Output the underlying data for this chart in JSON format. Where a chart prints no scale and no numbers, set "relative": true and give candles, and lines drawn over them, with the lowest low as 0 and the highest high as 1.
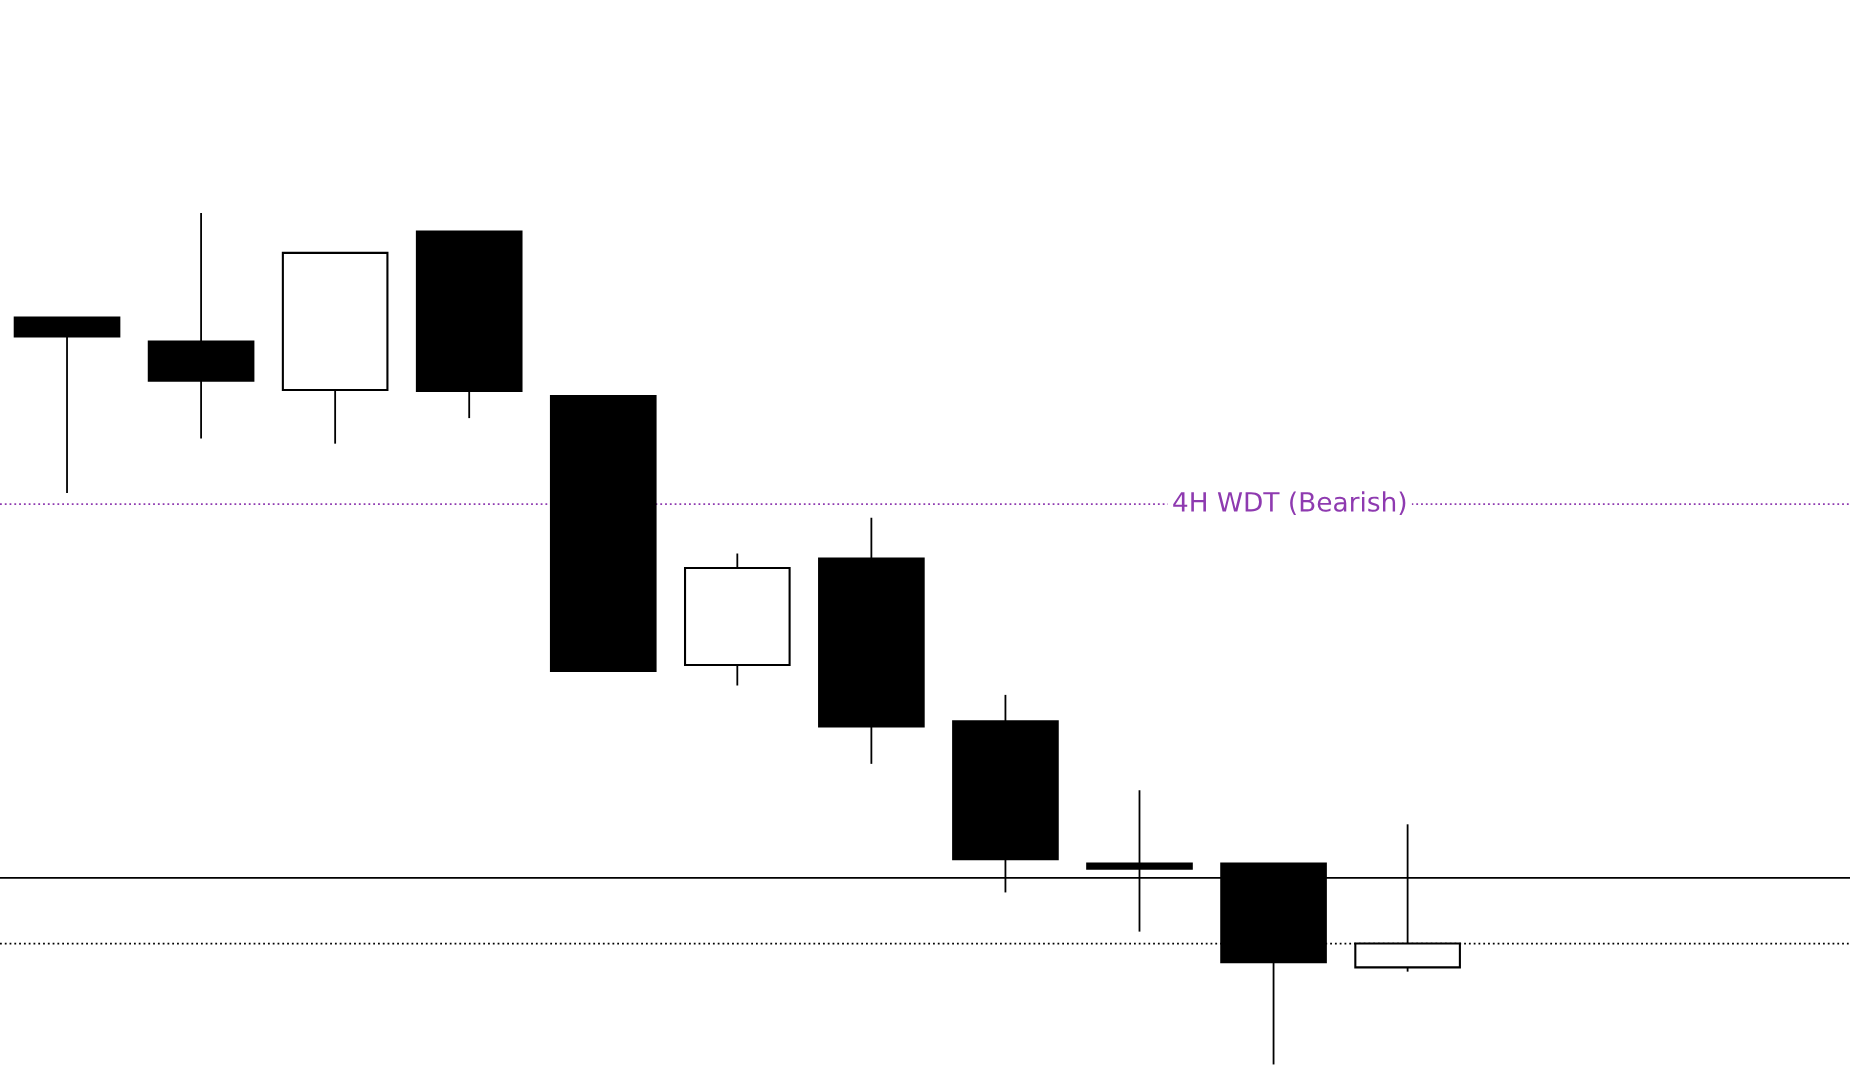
{
  "chart_data": {
    "type": "candlestick",
    "relative": true,
    "categories": [
      null,
      null,
      null,
      null,
      null,
      null,
      null,
      null,
      null,
      null,
      null
    ],
    "ohlc": [
      [
        0.877,
        0.877,
        0.671,
        0.855
      ],
      [
        0.849,
        1,
        0.735,
        0.803
      ],
      [
        0.792,
        0.953,
        0.729,
        0.953
      ],
      [
        0.978,
        0.978,
        0.759,
        0.791
      ],
      [
        0.785,
        0.785,
        0.462,
        0.462
      ],
      [
        0.469,
        0.6,
        0.445,
        0.583
      ],
      [
        0.594,
        0.642,
        0.353,
        0.397
      ],
      [
        0.403,
        0.434,
        0.202,
        0.241
      ],
      [
        0.236,
        0.322,
        0.156,
        0.23
      ],
      [
        0.236,
        0.236,
        0,
        0.12
      ],
      [
        0.114,
        0.282,
        0.109,
        0.142
      ]
    ],
    "colors": [
      "#000000",
      "#000000",
      "#ffffff",
      "#000000",
      "#000000",
      "#ffffff",
      "#000000",
      "#000000",
      "#000000",
      "#000000",
      "#ffffff"
    ],
    "ref_lines": [
      {
        "axis": "y",
        "value": 0.658,
        "label": "4H WDT (Bearish)",
        "color": "#8e3ab0",
        "line_style": "dotted"
      },
      {
        "axis": "y",
        "value": 0.142,
        "label": null,
        "color": "#000000",
        "line_style": "dotted"
      },
      {
        "axis": "y",
        "value": 0.219,
        "label": null,
        "color": "#000000",
        "line_style": "solid"
      }
    ],
    "grid": false,
    "legend": false
  }
}
